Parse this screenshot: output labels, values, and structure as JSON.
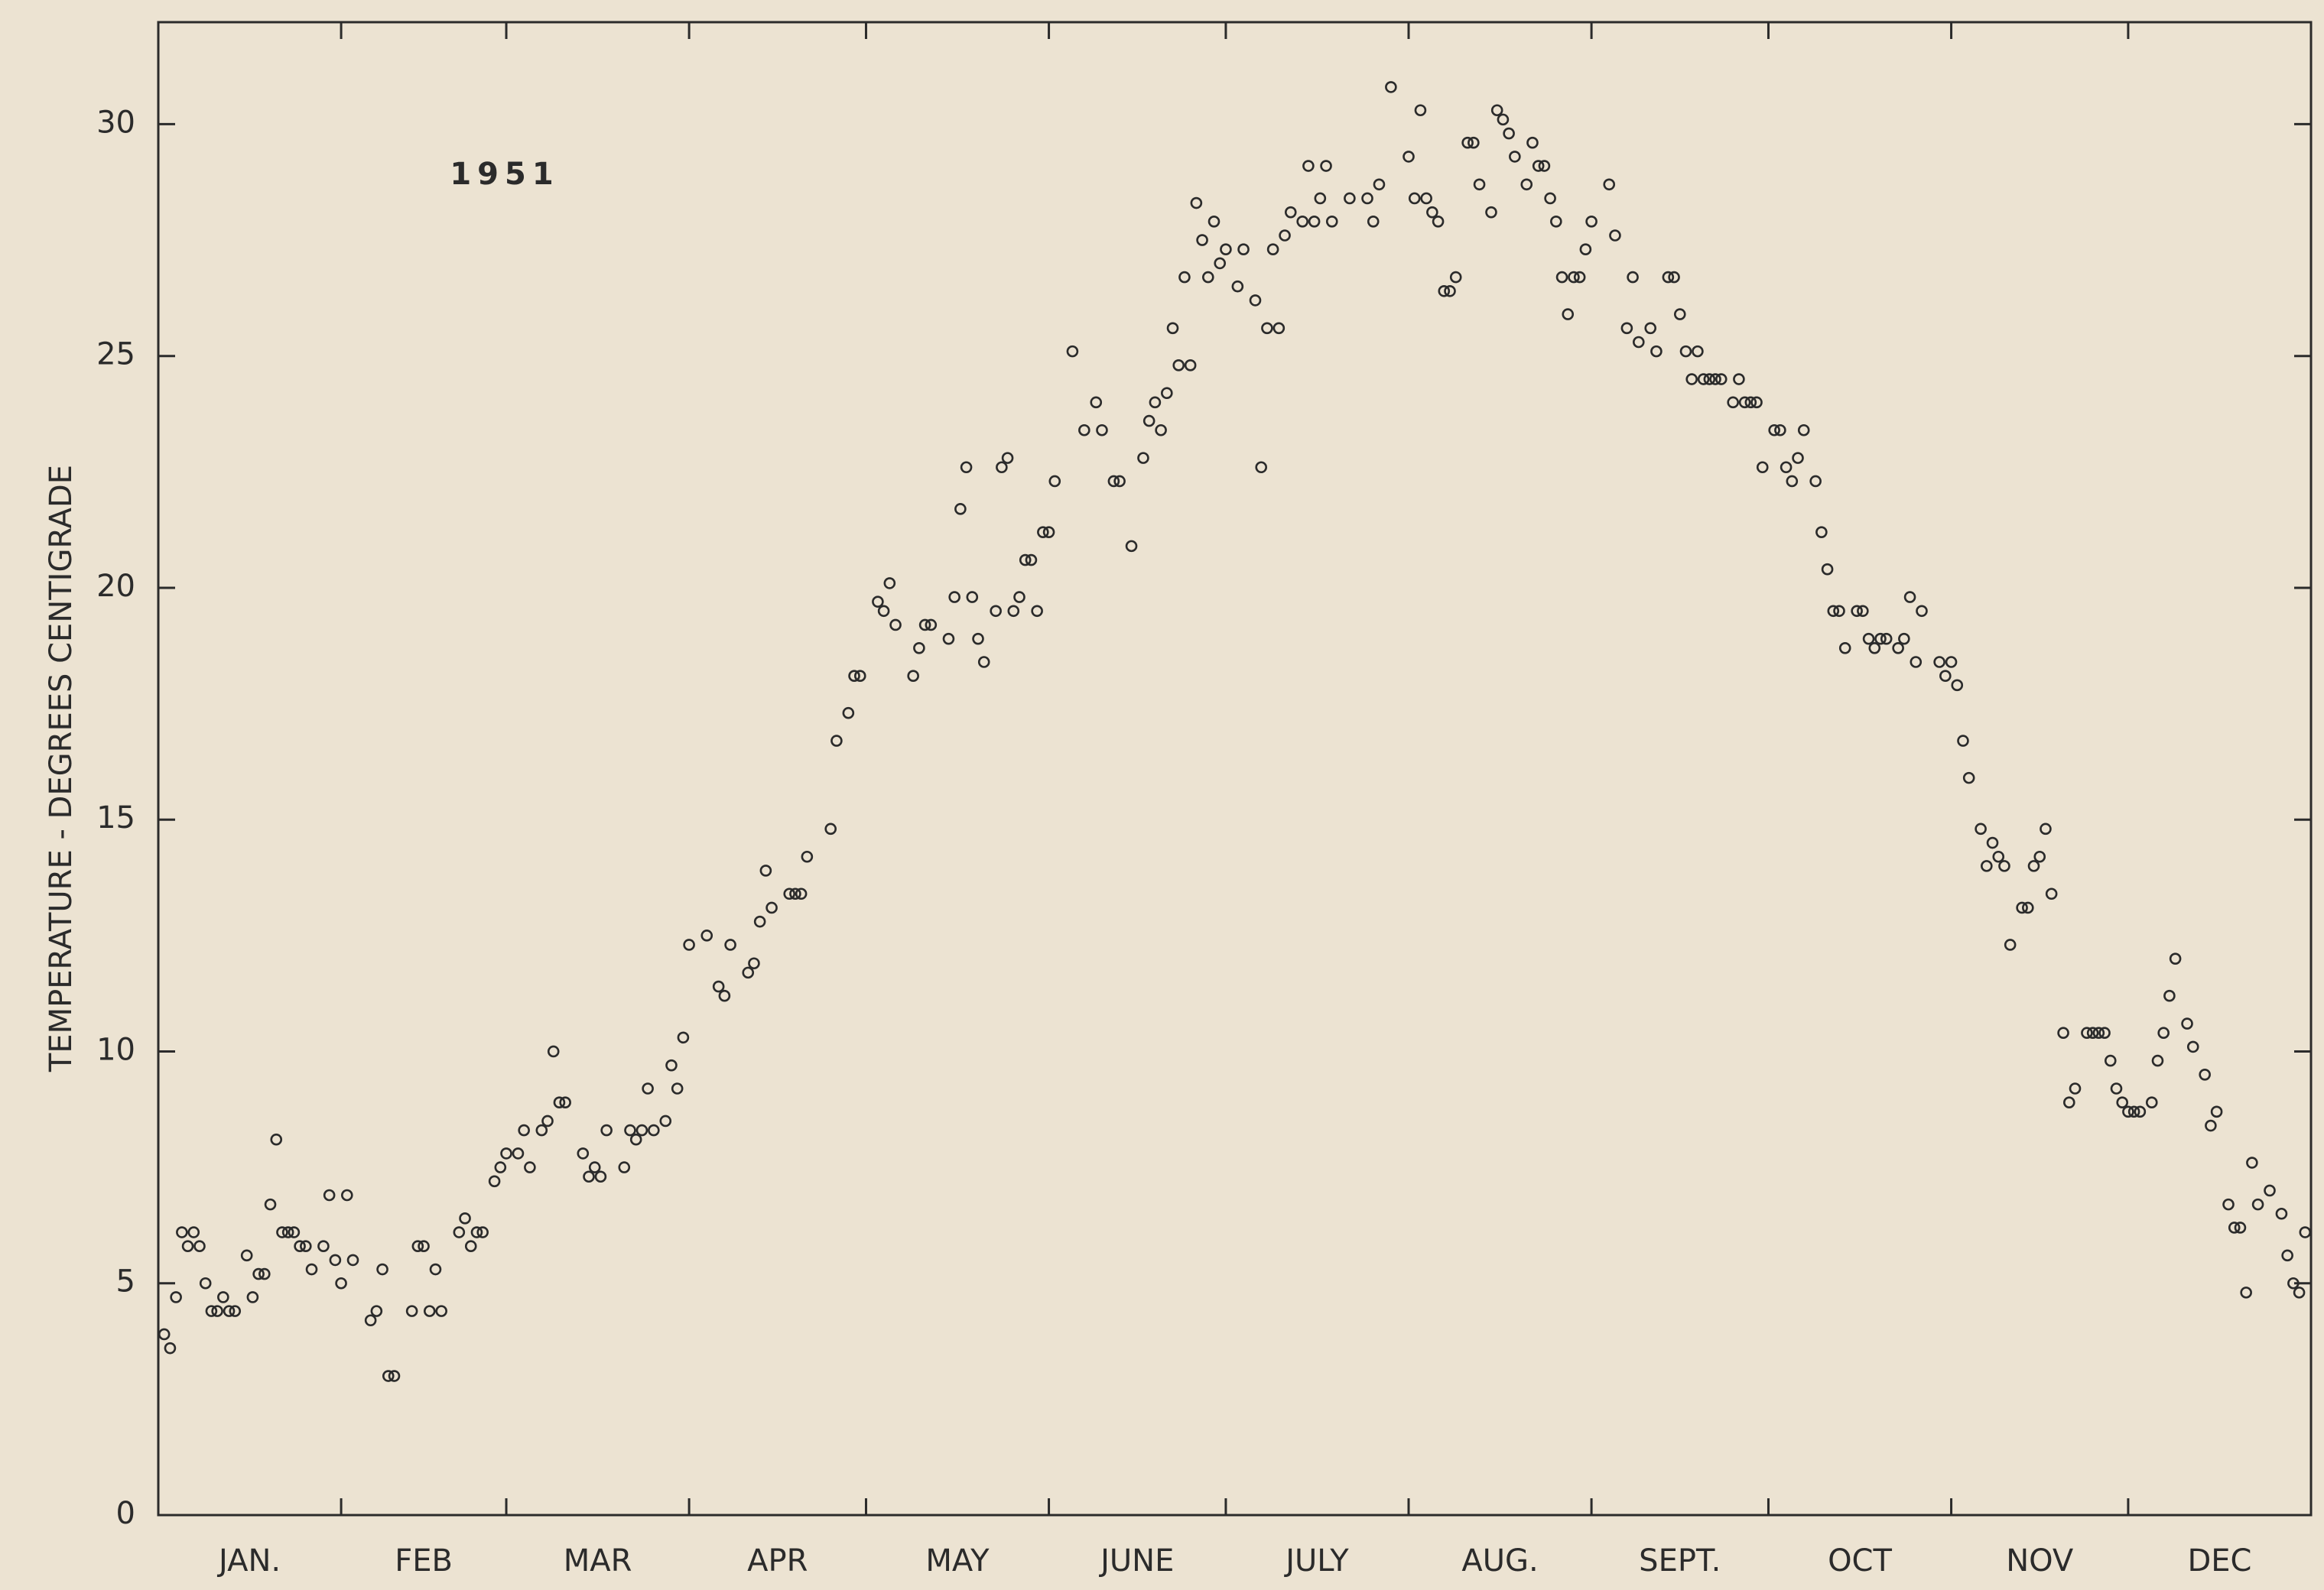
{
  "chart_data": {
    "type": "scatter",
    "ylabel": "TEMPERATURE - DEGREES CENTIGRADE",
    "annotation": "1951",
    "categories": [
      "JAN.",
      "FEB",
      "MAR",
      "APR",
      "MAY",
      "JUNE",
      "JULY",
      "AUG.",
      "SEPT.",
      "OCT",
      "NOV",
      "DEC"
    ],
    "xlim": [
      0,
      365
    ],
    "xticks": [
      0,
      31,
      59,
      90,
      120,
      151,
      181,
      212,
      243,
      273,
      304,
      334,
      365
    ],
    "ylim": [
      0,
      32.2
    ],
    "yticks": [
      0,
      5,
      10,
      15,
      20,
      25,
      30
    ],
    "color": "#2b2b2b",
    "series": [
      {
        "name": "1951",
        "x": [
          1,
          2,
          3,
          4,
          5,
          6,
          7,
          8,
          9,
          10,
          11,
          12,
          13,
          15,
          16,
          17,
          18,
          19,
          20,
          21,
          22,
          23,
          24,
          25,
          26,
          28,
          29,
          30,
          31,
          32,
          33,
          36,
          37,
          38,
          39,
          40,
          43,
          44,
          45,
          46,
          47,
          48,
          51,
          52,
          53,
          54,
          55,
          57,
          58,
          59,
          61,
          62,
          63,
          65,
          66,
          67,
          68,
          69,
          72,
          73,
          74,
          75,
          76,
          79,
          80,
          81,
          82,
          83,
          84,
          86,
          87,
          88,
          89,
          90,
          93,
          95,
          96,
          97,
          100,
          101,
          102,
          103,
          104,
          107,
          108,
          109,
          110,
          114,
          115,
          117,
          118,
          119,
          122,
          123,
          124,
          125,
          128,
          129,
          130,
          131,
          134,
          135,
          136,
          137,
          138,
          139,
          140,
          142,
          143,
          144,
          145,
          146,
          147,
          148,
          149,
          150,
          151,
          152,
          155,
          157,
          159,
          160,
          162,
          163,
          165,
          167,
          168,
          169,
          170,
          171,
          172,
          173,
          174,
          175,
          176,
          177,
          178,
          179,
          180,
          181,
          183,
          184,
          186,
          187,
          188,
          189,
          190,
          191,
          192,
          194,
          195,
          196,
          197,
          198,
          199,
          202,
          205,
          206,
          207,
          209,
          212,
          213,
          214,
          215,
          216,
          217,
          218,
          219,
          220,
          222,
          223,
          224,
          226,
          227,
          228,
          229,
          230,
          232,
          233,
          234,
          235,
          236,
          237,
          238,
          239,
          240,
          241,
          242,
          243,
          246,
          247,
          249,
          250,
          251,
          253,
          254,
          256,
          257,
          258,
          259,
          260,
          261,
          262,
          263,
          264,
          265,
          267,
          268,
          269,
          270,
          271,
          272,
          274,
          275,
          276,
          277,
          278,
          279,
          281,
          282,
          283,
          284,
          285,
          286,
          288,
          289,
          290,
          291,
          292,
          293,
          295,
          296,
          297,
          298,
          299,
          302,
          303,
          304,
          305,
          306,
          307,
          309,
          310,
          311,
          312,
          313,
          314,
          316,
          317,
          318,
          319,
          320,
          321,
          323,
          324,
          325,
          327,
          328,
          329,
          330,
          331,
          332,
          333,
          334,
          335,
          336,
          338,
          339,
          340,
          341,
          342,
          344,
          345,
          347,
          348,
          349,
          351,
          352,
          353,
          354,
          355,
          356,
          358,
          360,
          361,
          362,
          363,
          364
        ],
        "values": [
          3.9,
          3.6,
          4.7,
          6.1,
          5.8,
          6.1,
          5.8,
          5.0,
          4.4,
          4.4,
          4.7,
          4.4,
          4.4,
          5.6,
          4.7,
          5.2,
          5.2,
          6.7,
          8.1,
          6.1,
          6.1,
          6.1,
          5.8,
          5.8,
          5.3,
          5.8,
          6.9,
          5.5,
          5.0,
          6.9,
          5.5,
          4.2,
          4.4,
          5.3,
          3.0,
          3.0,
          4.4,
          5.8,
          5.8,
          4.4,
          5.3,
          4.4,
          6.1,
          6.4,
          5.8,
          6.1,
          6.1,
          7.2,
          7.5,
          7.8,
          7.8,
          8.3,
          7.5,
          8.3,
          8.5,
          10.0,
          8.9,
          8.9,
          7.8,
          7.3,
          7.5,
          7.3,
          8.3,
          7.5,
          8.3,
          8.1,
          8.3,
          9.2,
          8.3,
          8.5,
          9.7,
          9.2,
          10.3,
          12.3,
          12.5,
          11.4,
          11.2,
          12.3,
          11.7,
          11.9,
          12.8,
          13.9,
          13.1,
          13.4,
          13.4,
          13.4,
          14.2,
          14.8,
          16.7,
          17.3,
          18.1,
          18.1,
          19.7,
          19.5,
          20.1,
          19.2,
          18.1,
          18.7,
          19.2,
          19.2,
          18.9,
          19.8,
          21.7,
          22.6,
          19.8,
          18.9,
          18.4,
          19.5,
          22.6,
          22.8,
          19.5,
          19.8,
          20.6,
          20.6,
          19.5,
          21.2,
          21.2,
          22.3,
          25.1,
          23.4,
          24.0,
          23.4,
          22.3,
          22.3,
          20.9,
          22.8,
          23.6,
          24.0,
          23.4,
          24.2,
          25.6,
          24.8,
          26.7,
          24.8,
          28.3,
          27.5,
          26.7,
          27.9,
          27.0,
          27.3,
          26.5,
          27.3,
          26.2,
          22.6,
          25.6,
          27.3,
          25.6,
          27.6,
          28.1,
          27.9,
          29.1,
          27.9,
          28.4,
          29.1,
          27.9,
          28.4,
          28.4,
          27.9,
          28.7,
          30.8,
          29.3,
          28.4,
          30.3,
          28.4,
          28.1,
          27.9,
          26.4,
          26.4,
          26.7,
          29.6,
          29.6,
          28.7,
          28.1,
          30.3,
          30.1,
          29.8,
          29.3,
          28.7,
          29.6,
          29.1,
          29.1,
          28.4,
          27.9,
          26.7,
          25.9,
          26.7,
          26.7,
          27.3,
          27.9,
          28.7,
          27.6,
          25.6,
          26.7,
          25.3,
          25.6,
          25.1,
          26.7,
          26.7,
          25.9,
          25.1,
          24.5,
          25.1,
          24.5,
          24.5,
          24.5,
          24.5,
          24.0,
          24.5,
          24.0,
          24.0,
          24.0,
          22.6,
          23.4,
          23.4,
          22.6,
          22.3,
          22.8,
          23.4,
          22.3,
          21.2,
          20.4,
          19.5,
          19.5,
          18.7,
          19.5,
          19.5,
          18.9,
          18.7,
          18.9,
          18.9,
          18.7,
          18.9,
          19.8,
          18.4,
          19.5,
          18.4,
          18.1,
          18.4,
          17.9,
          16.7,
          15.9,
          14.8,
          14.0,
          14.5,
          14.2,
          14.0,
          12.3,
          13.1,
          13.1,
          14.0,
          14.2,
          14.8,
          13.4,
          10.4,
          8.9,
          9.2,
          10.4,
          10.4,
          10.4,
          10.4,
          9.8,
          9.2,
          8.9,
          8.7,
          8.7,
          8.7,
          8.9,
          9.8,
          10.4,
          11.2,
          12.0,
          10.6,
          10.1,
          9.5,
          8.4,
          8.7,
          6.7,
          6.2,
          6.2,
          4.8,
          7.6,
          6.7,
          7.0,
          6.5,
          5.6,
          5.0,
          4.8,
          6.1
        ]
      }
    ]
  }
}
